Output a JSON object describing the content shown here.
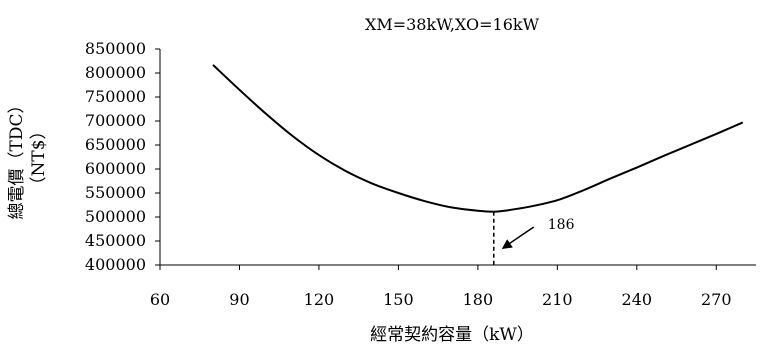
{
  "chart_data": {
    "type": "line",
    "title": "XM=38kW,XO=16kW",
    "xlabel": "經常契約容量（kW）",
    "ylabel_lines": [
      "總電價（TDC）",
      "（NT$）"
    ],
    "xlim": [
      60,
      285
    ],
    "ylim": [
      400000,
      850000
    ],
    "x_ticks": [
      60,
      90,
      120,
      150,
      180,
      210,
      240,
      270
    ],
    "y_ticks": [
      400000,
      450000,
      500000,
      550000,
      600000,
      650000,
      700000,
      750000,
      800000,
      850000
    ],
    "grid": false,
    "legend": "none",
    "line_color": "#000000",
    "series": [
      {
        "x": [
          80,
          90,
          100,
          110,
          120,
          130,
          140,
          150,
          160,
          170,
          180,
          186,
          190,
          200,
          210,
          220,
          230,
          240,
          250,
          260,
          270,
          280
        ],
        "values": [
          817000,
          765000,
          715000,
          669000,
          629000,
          596000,
          570000,
          550000,
          533000,
          520000,
          513000,
          511000,
          513000,
          522000,
          535000,
          556000,
          580000,
          603000,
          627000,
          650000,
          673000,
          697000
        ]
      }
    ],
    "annotation": {
      "label": "186",
      "x": 186
    }
  }
}
